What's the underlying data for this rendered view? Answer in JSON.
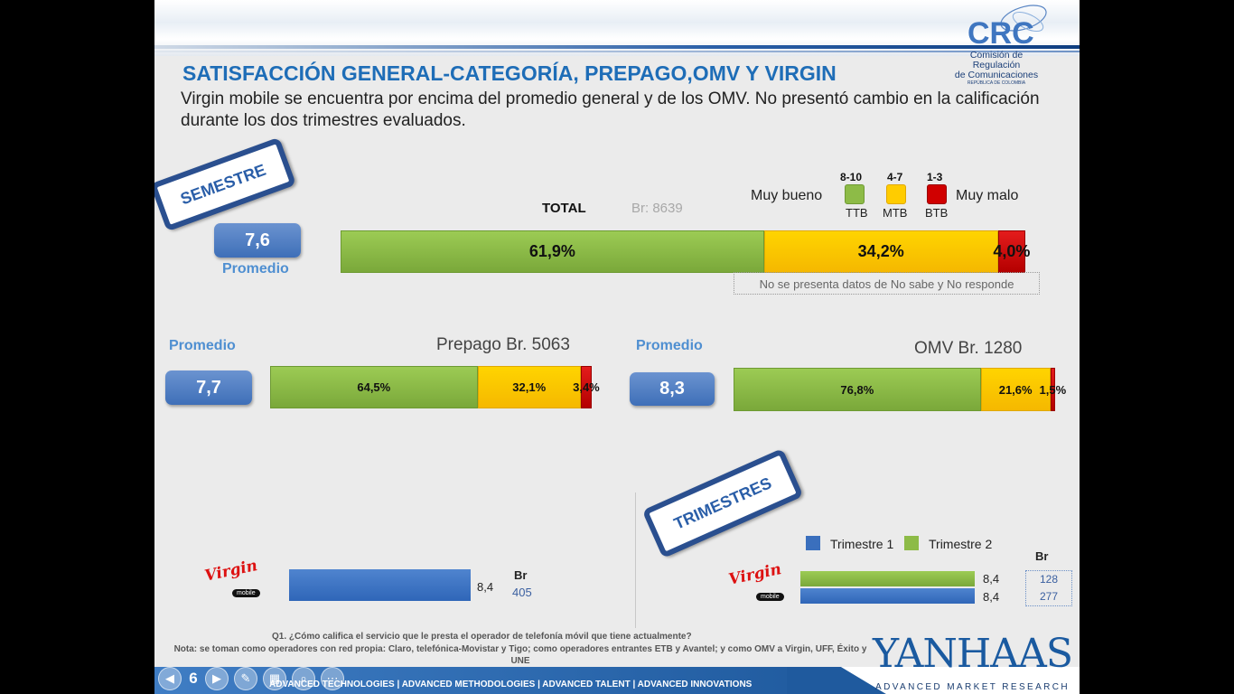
{
  "title": "SATISFACCIÓN GENERAL-CATEGORÍA, PREPAGO,OMV Y VIRGIN",
  "subtitle": "Virgin mobile se encuentra por encima del promedio general y de los OMV. No presentó cambio en la calificación durante los dos trimestres evaluados.",
  "crc_logo": {
    "line1": "Comisión de Regulación",
    "line2": "de Comunicaciones",
    "line3": "REPÚBLICA DE COLOMBIA",
    "mark": "CRC"
  },
  "stamps": {
    "semestre": "SEMESTRE",
    "trimestres": "TRIMESTRES"
  },
  "legend": {
    "left_label": "Muy bueno",
    "right_label": "Muy malo",
    "items": [
      {
        "range": "8-10",
        "code": "TTB",
        "color": "#8dbb47"
      },
      {
        "range": "4-7",
        "code": "MTB",
        "color": "#ffcc00"
      },
      {
        "range": "1-3",
        "code": "BTB",
        "color": "#d00000"
      }
    ]
  },
  "total": {
    "label": "TOTAL",
    "base": "Br: 8639",
    "average": "7,6",
    "average_label": "Promedio",
    "segments": [
      {
        "label": "61,9%",
        "value": 61.9
      },
      {
        "label": "34,2%",
        "value": 34.2
      },
      {
        "label": "4,0%",
        "value": 4.0
      }
    ],
    "note": "No se presenta datos de No sabe y  No responde"
  },
  "prepago": {
    "label": "Prepago Br. 5063",
    "average": "7,7",
    "average_label": "Promedio",
    "segments": [
      {
        "label": "64,5%",
        "value": 64.5
      },
      {
        "label": "32,1%",
        "value": 32.1
      },
      {
        "label": "3,4%",
        "value": 3.4
      }
    ]
  },
  "omv": {
    "label": "OMV Br. 1280",
    "average": "8,3",
    "average_label": "Promedio",
    "segments": [
      {
        "label": "76,8%",
        "value": 76.8
      },
      {
        "label": "21,6%",
        "value": 21.6
      },
      {
        "label": "1,5%",
        "value": 1.5
      }
    ]
  },
  "virgin_semestre": {
    "brand": "Virgin",
    "brand_sub": "mobile",
    "value_label": "8,4",
    "value": 8.4,
    "br_header": "Br",
    "br": "405"
  },
  "virgin_trimestres": {
    "brand": "Virgin",
    "brand_sub": "mobile",
    "legend": [
      {
        "name": "Trimestre 1",
        "color": "#3a6fbd"
      },
      {
        "name": "Trimestre 2",
        "color": "#8dbb47"
      }
    ],
    "br_header": "Br",
    "bars": [
      {
        "series": "Trimestre 2",
        "value": 8.4,
        "label": "8,4",
        "br": "128"
      },
      {
        "series": "Trimestre 1",
        "value": 8.4,
        "label": "8,4",
        "br": "277"
      }
    ]
  },
  "question": "Q1. ¿Cómo califica el servicio que le presta el operador de telefonía móvil que tiene actualmente?",
  "note": "Nota: se toman como operadores con red propia: Claro, telefónica-Movistar y Tigo; como operadores entrantes ETB y Avantel; y como OMV a Virgin, UFF, Éxito y UNE",
  "footer": {
    "slide_number": "6",
    "tagline": "ADVANCED TECHNOLOGIES  |  ADVANCED METHODOLOGIES  |  ADVANCED TALENT  |  ADVANCED INNOVATIONS"
  },
  "yanhaas": {
    "logo": "YANHAAS",
    "tagline": "ADVANCED MARKET RESEARCH"
  }
}
